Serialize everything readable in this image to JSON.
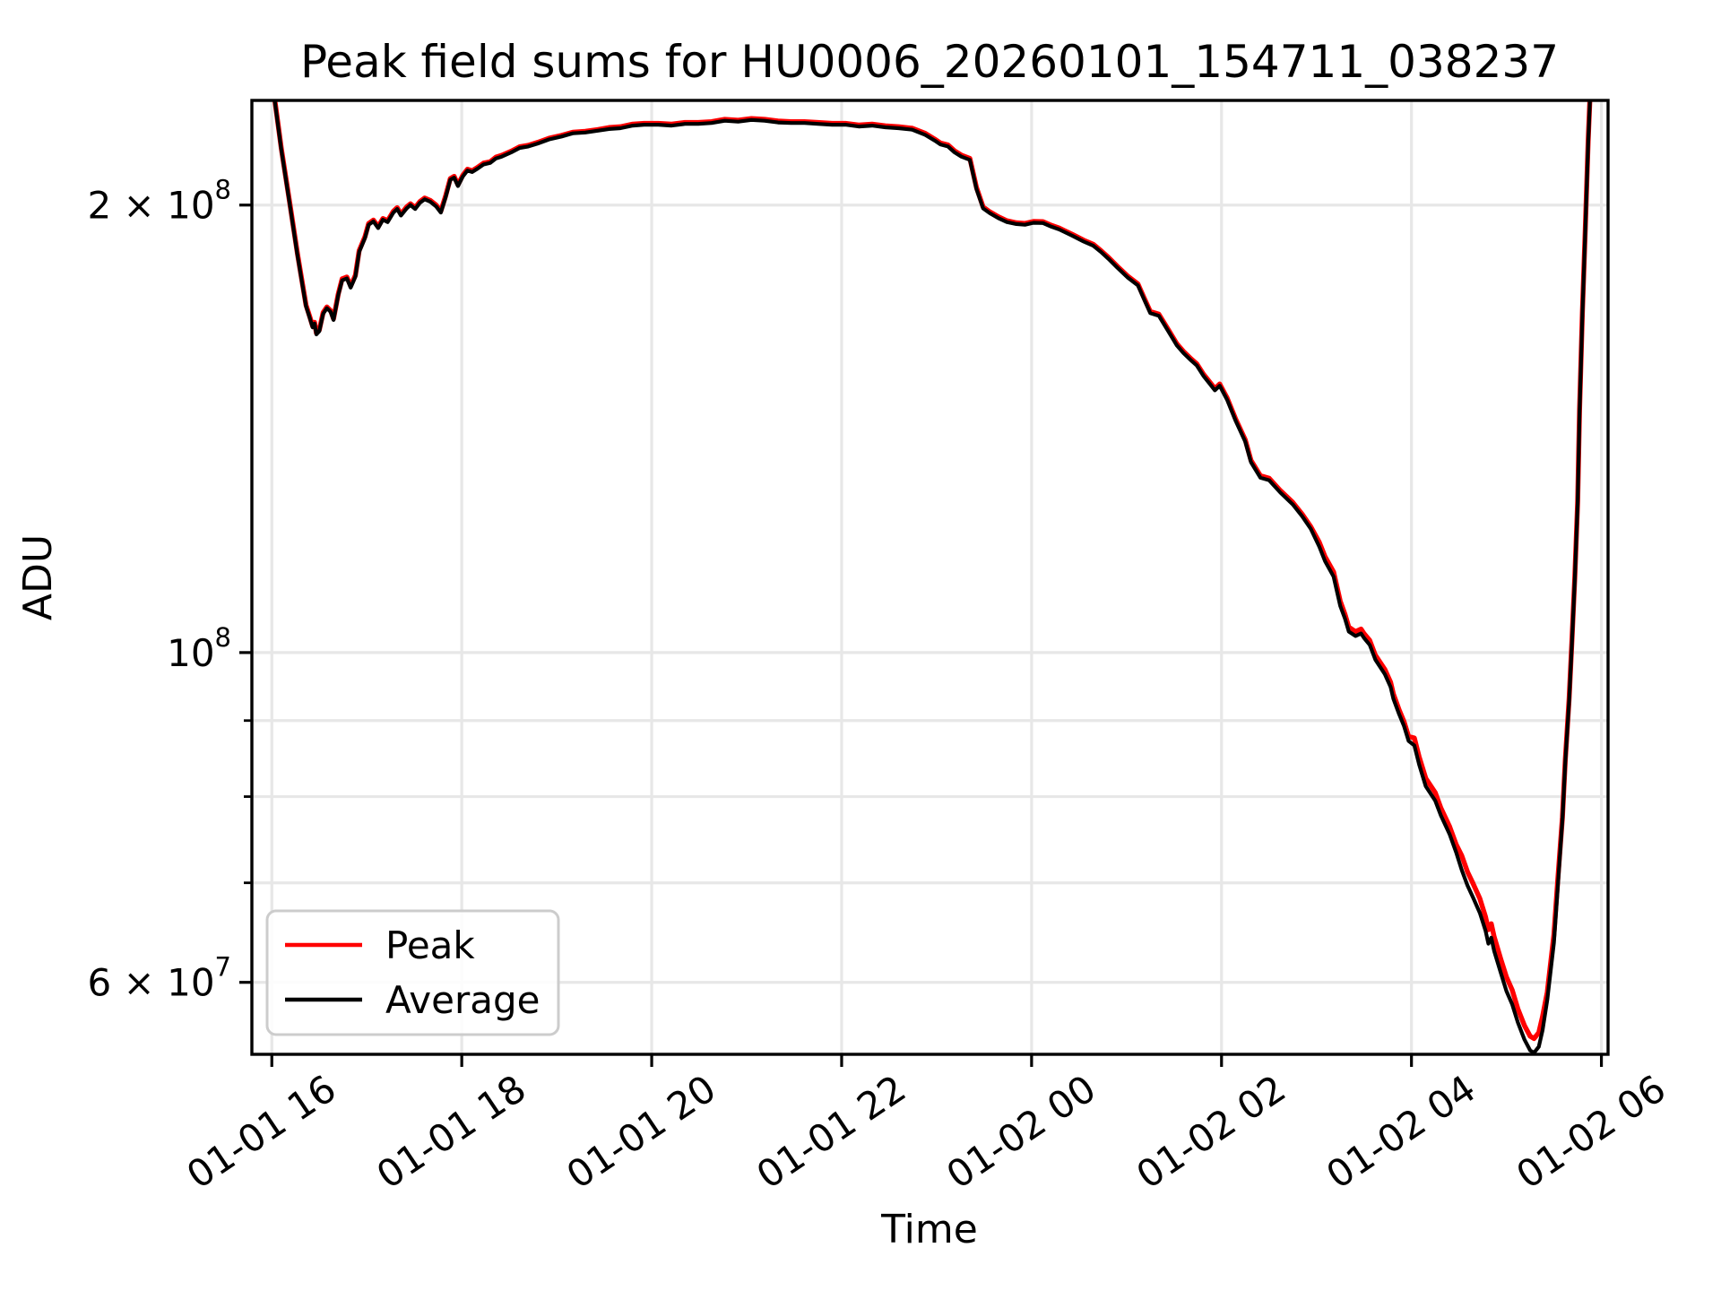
{
  "chart_data": {
    "type": "line",
    "title": "Peak field sums for HU0006_20260101_154711_038237",
    "xlabel": "Time",
    "ylabel": "ADU",
    "y_scale": "log",
    "grid": true,
    "x_unit": "hours since 01-01 00:00",
    "value_scale": 1000000,
    "xlim": [
      15.79,
      30.07
    ],
    "ylim_e6": [
      53.67,
      235.2
    ],
    "x_ticks": [
      {
        "t": 16,
        "label": "01-01 16"
      },
      {
        "t": 18,
        "label": "01-01 18"
      },
      {
        "t": 20,
        "label": "01-01 20"
      },
      {
        "t": 22,
        "label": "01-01 22"
      },
      {
        "t": 24,
        "label": "01-02 00"
      },
      {
        "t": 26,
        "label": "01-02 02"
      },
      {
        "t": 28,
        "label": "01-02 04"
      },
      {
        "t": 30,
        "label": "01-02 06"
      }
    ],
    "y_ticks_labeled": [
      {
        "value_e6": 200,
        "mantissa": "2 × 10",
        "exponent": "8"
      },
      {
        "value_e6": 100,
        "mantissa": "10",
        "exponent": "8"
      },
      {
        "value_e6": 60,
        "mantissa": "6 × 10",
        "exponent": "7"
      }
    ],
    "y_ticks_minor_e6": [
      90,
      80,
      70
    ],
    "legend": {
      "position": "lower left",
      "entries": [
        {
          "label": "Peak",
          "color": "#ff0000"
        },
        {
          "label": "Average",
          "color": "#000000"
        }
      ]
    },
    "series_order": [
      "time_hours",
      "Peak_e6",
      "Average_e6"
    ],
    "points": [
      [
        15.8,
        300.6,
        300
      ],
      [
        15.88,
        278.6,
        278
      ],
      [
        15.95,
        258.5,
        258
      ],
      [
        16.03,
        235.8,
        235.3
      ],
      [
        16.1,
        218.4,
        218
      ],
      [
        16.19,
        200.4,
        200
      ],
      [
        16.27,
        185.4,
        185
      ],
      [
        16.31,
        179,
        178.6
      ],
      [
        16.36,
        171.3,
        171
      ],
      [
        16.4,
        168.2,
        167.9
      ],
      [
        16.43,
        165.8,
        165.5
      ],
      [
        16.45,
        166.8,
        166.5
      ],
      [
        16.47,
        164,
        163.7
      ],
      [
        16.5,
        164.8,
        164.5
      ],
      [
        16.54,
        169.3,
        169
      ],
      [
        16.58,
        170.8,
        170.5
      ],
      [
        16.62,
        169.8,
        169.5
      ],
      [
        16.65,
        167.7,
        167.4
      ],
      [
        16.7,
        174.3,
        174
      ],
      [
        16.74,
        178.4,
        178
      ],
      [
        16.79,
        178.9,
        178.5
      ],
      [
        16.83,
        176.4,
        176
      ],
      [
        16.88,
        179.4,
        179
      ],
      [
        16.92,
        186.4,
        186
      ],
      [
        16.98,
        190.4,
        190
      ],
      [
        17.02,
        194.4,
        194
      ],
      [
        17.07,
        195.4,
        195
      ],
      [
        17.12,
        193.4,
        193
      ],
      [
        17.17,
        195.9,
        195.5
      ],
      [
        17.22,
        195.2,
        194.8
      ],
      [
        17.28,
        198.1,
        197.7
      ],
      [
        17.32,
        199.2,
        198.8
      ],
      [
        17.36,
        197.2,
        196.8
      ],
      [
        17.42,
        199.4,
        199
      ],
      [
        17.46,
        200.4,
        200
      ],
      [
        17.51,
        199.2,
        198.8
      ],
      [
        17.56,
        201.1,
        200.7
      ],
      [
        17.61,
        202.2,
        201.8
      ],
      [
        17.67,
        201.4,
        201
      ],
      [
        17.73,
        200,
        199.6
      ],
      [
        17.78,
        198.1,
        197.7
      ],
      [
        17.83,
        202.8,
        202.4
      ],
      [
        17.88,
        208.4,
        208
      ],
      [
        17.92,
        209.1,
        208.7
      ],
      [
        17.96,
        206.4,
        206
      ],
      [
        18.01,
        209.4,
        209
      ],
      [
        18.06,
        211.4,
        211
      ],
      [
        18.11,
        210.9,
        210.5
      ],
      [
        18.17,
        212.1,
        211.7
      ],
      [
        18.23,
        213.4,
        213
      ],
      [
        18.3,
        213.9,
        213.5
      ],
      [
        18.36,
        215.4,
        215
      ],
      [
        18.42,
        216,
        215.6
      ],
      [
        18.52,
        217.4,
        217
      ],
      [
        18.61,
        218.9,
        218.5
      ],
      [
        18.7,
        219.4,
        219
      ],
      [
        18.8,
        220.4,
        220
      ],
      [
        18.92,
        221.8,
        221.4
      ],
      [
        19.05,
        222.8,
        222.4
      ],
      [
        19.17,
        223.9,
        223.5
      ],
      [
        19.3,
        224.2,
        223.8
      ],
      [
        19.43,
        224.8,
        224.4
      ],
      [
        19.55,
        225.5,
        225
      ],
      [
        19.67,
        225.8,
        225.3
      ],
      [
        19.8,
        226.7,
        226.2
      ],
      [
        19.92,
        227,
        226.5
      ],
      [
        20.07,
        227,
        226.5
      ],
      [
        20.21,
        226.7,
        226.2
      ],
      [
        20.35,
        227.3,
        226.8
      ],
      [
        20.49,
        227.3,
        226.8
      ],
      [
        20.63,
        227.6,
        227.1
      ],
      [
        20.77,
        228.4,
        227.9
      ],
      [
        20.91,
        228.1,
        227.6
      ],
      [
        21.05,
        228.7,
        228.2
      ],
      [
        21.19,
        228.4,
        227.9
      ],
      [
        21.33,
        227.8,
        227.3
      ],
      [
        21.47,
        227.6,
        227.1
      ],
      [
        21.61,
        227.6,
        227.1
      ],
      [
        21.75,
        227.3,
        226.8
      ],
      [
        21.9,
        227,
        226.5
      ],
      [
        22.04,
        227,
        226.5
      ],
      [
        22.18,
        226.4,
        225.9
      ],
      [
        22.32,
        226.7,
        226.2
      ],
      [
        22.46,
        226.1,
        225.6
      ],
      [
        22.6,
        225.8,
        225.3
      ],
      [
        22.74,
        225.3,
        224.8
      ],
      [
        22.88,
        223.5,
        223
      ],
      [
        22.98,
        221.5,
        221
      ],
      [
        23.04,
        220.2,
        219.7
      ],
      [
        23.12,
        219.5,
        219
      ],
      [
        23.19,
        217.5,
        217
      ],
      [
        23.26,
        216.1,
        215.6
      ],
      [
        23.35,
        215,
        214.5
      ],
      [
        23.42,
        205.5,
        205
      ],
      [
        23.49,
        199.4,
        199
      ],
      [
        23.56,
        197.9,
        197.5
      ],
      [
        23.65,
        196.4,
        196
      ],
      [
        23.74,
        195.2,
        194.8
      ],
      [
        23.84,
        194.6,
        194.2
      ],
      [
        23.93,
        194.4,
        194
      ],
      [
        24.02,
        195,
        194.6
      ],
      [
        24.12,
        194.9,
        194.5
      ],
      [
        24.21,
        193.8,
        193.4
      ],
      [
        24.29,
        193,
        192.6
      ],
      [
        24.43,
        191.1,
        190.7
      ],
      [
        24.55,
        189.4,
        189
      ],
      [
        24.65,
        188.2,
        187.8
      ],
      [
        24.73,
        186.4,
        186
      ],
      [
        24.81,
        184.4,
        184
      ],
      [
        24.9,
        182,
        181.6
      ],
      [
        25.01,
        179.2,
        178.8
      ],
      [
        25.12,
        177,
        176.6
      ],
      [
        25.19,
        172.9,
        172.5
      ],
      [
        25.25,
        169.6,
        169.2
      ],
      [
        25.34,
        168.9,
        168.5
      ],
      [
        25.44,
        164.9,
        164.5
      ],
      [
        25.53,
        161.3,
        160.9
      ],
      [
        25.6,
        159.4,
        159
      ],
      [
        25.68,
        157.6,
        157.2
      ],
      [
        25.74,
        156.4,
        156
      ],
      [
        25.81,
        153.9,
        153.5
      ],
      [
        25.87,
        152.2,
        151.8
      ],
      [
        25.93,
        150.5,
        150.1
      ],
      [
        25.98,
        151.6,
        151.2
      ],
      [
        26.06,
        148.3,
        147.9
      ],
      [
        26.15,
        143.5,
        143.1
      ],
      [
        26.25,
        139,
        138.6
      ],
      [
        26.31,
        134.7,
        134.3
      ],
      [
        26.41,
        131.5,
        131.1
      ],
      [
        26.5,
        131,
        130.6
      ],
      [
        26.62,
        128.5,
        128.1
      ],
      [
        26.75,
        126.2,
        125.8
      ],
      [
        26.85,
        123.9,
        123.5
      ],
      [
        26.94,
        121.5,
        121.1
      ],
      [
        27.03,
        118.6,
        117.8
      ],
      [
        27.09,
        116,
        115.2
      ],
      [
        27.18,
        113.3,
        112.5
      ],
      [
        27.25,
        108.3,
        107.5
      ],
      [
        27.3,
        106.1,
        105.4
      ],
      [
        27.34,
        104,
        103.3
      ],
      [
        27.41,
        103.3,
        102.6
      ],
      [
        27.47,
        103.7,
        103
      ],
      [
        27.5,
        103,
        102.3
      ],
      [
        27.56,
        101.9,
        101.2
      ],
      [
        27.62,
        99.6,
        98.9
      ],
      [
        27.72,
        97.4,
        96.7
      ],
      [
        27.78,
        95.5,
        94.8
      ],
      [
        27.81,
        93.8,
        93.1
      ],
      [
        27.87,
        91.5,
        90.9
      ],
      [
        27.92,
        89.9,
        89.3
      ],
      [
        27.97,
        87.8,
        87.2
      ],
      [
        28.03,
        87.6,
        86.6
      ],
      [
        28.08,
        85.1,
        84.1
      ],
      [
        28.15,
        82.3,
        81.3
      ],
      [
        28.25,
        80.5,
        79.5
      ],
      [
        28.31,
        78.6,
        77.7
      ],
      [
        28.4,
        76.4,
        75.5
      ],
      [
        28.47,
        74.3,
        73.4
      ],
      [
        28.53,
        73,
        71.4
      ],
      [
        28.59,
        71.2,
        69.7
      ],
      [
        28.65,
        69.9,
        68.4
      ],
      [
        28.72,
        68.3,
        66.8
      ],
      [
        28.78,
        66.4,
        65
      ],
      [
        28.81,
        65.1,
        63.7
      ],
      [
        28.84,
        65.7,
        64.3
      ],
      [
        28.87,
        64.4,
        63
      ],
      [
        28.94,
        62.2,
        60.9
      ],
      [
        29,
        60.5,
        59.2
      ],
      [
        29.06,
        59.3,
        58
      ],
      [
        29.12,
        57.6,
        56.4
      ],
      [
        29.19,
        56.1,
        54.9
      ],
      [
        29.25,
        55.2,
        54
      ],
      [
        29.29,
        55,
        53.8
      ],
      [
        29.34,
        55.5,
        54.3
      ],
      [
        29.38,
        56.9,
        55.7
      ],
      [
        29.43,
        59.1,
        58.4
      ],
      [
        29.5,
        64.6,
        63.8
      ],
      [
        29.54,
        70.2,
        69.4
      ],
      [
        29.59,
        77.5,
        77.2
      ],
      [
        29.62,
        84.7,
        84.4
      ],
      [
        29.66,
        93.2,
        92.8
      ],
      [
        29.69,
        101.9,
        101.5
      ],
      [
        29.72,
        112.4,
        112
      ],
      [
        29.75,
        126.5,
        126
      ],
      [
        29.77,
        145.6,
        145
      ],
      [
        29.8,
        169.7,
        169
      ],
      [
        29.83,
        192.8,
        192
      ],
      [
        29.86,
        220.9,
        220
      ],
      [
        29.88,
        236.9,
        236
      ],
      [
        29.9,
        261,
        260
      ]
    ]
  },
  "colors": {
    "peak_line": "#ff0000",
    "average_line": "#000000",
    "grid": "#e7e7e7",
    "spine": "#000000",
    "legend_border": "#cccccc",
    "background": "#ffffff"
  }
}
